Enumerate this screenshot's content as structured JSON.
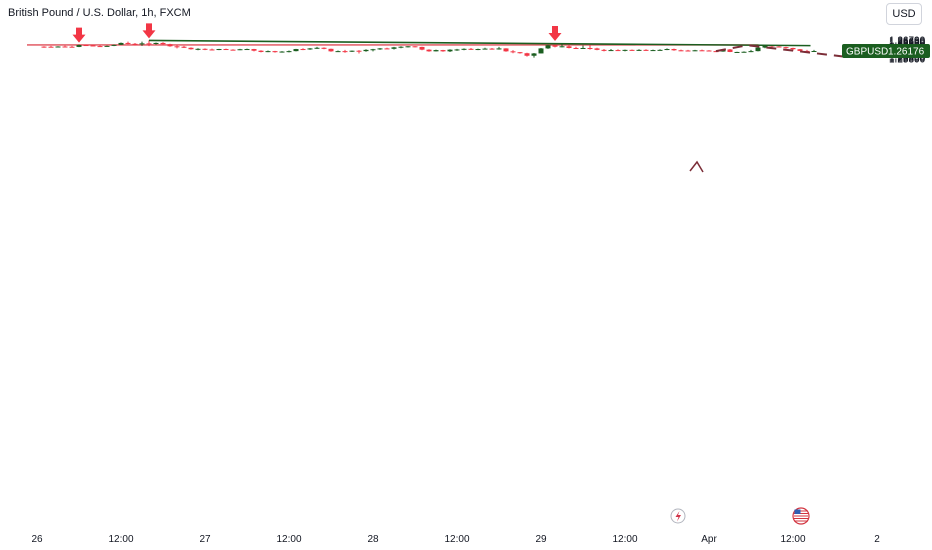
{
  "header": {
    "title": "British Pound / U.S. Dollar, 1h, FXCM",
    "currency_button": "USD"
  },
  "price_tag": {
    "symbol": "GBPUSD",
    "price": "1.26176"
  },
  "colors": {
    "up": "#1b5e20",
    "down": "#f23645",
    "trendline": "#1b5e20",
    "zone_fill": "#f8c7cc",
    "zone_stroke": "#e0525c",
    "arrow": "#f23645",
    "projection": "#7b2d37",
    "price_tag_bg": "#1b5e20"
  },
  "chart_data": {
    "type": "candlestick",
    "y_axis": {
      "range": [
        1.2579,
        1.2674
      ],
      "ticks": [
        "1.26700",
        "1.26650",
        "1.26600",
        "1.26550",
        "1.26500",
        "1.26450",
        "1.26400",
        "1.26350",
        "1.26300",
        "1.26250",
        "1.26200",
        "1.26150",
        "1.26100",
        "1.26050",
        "1.26000",
        "1.25950",
        "1.25900",
        "1.25850",
        "1.25800"
      ]
    },
    "x_axis": {
      "ticks": [
        {
          "label": "26",
          "i": -1
        },
        {
          "label": "12:00",
          "i": 11
        },
        {
          "label": "27",
          "i": 23
        },
        {
          "label": "12:00",
          "i": 35
        },
        {
          "label": "28",
          "i": 47
        },
        {
          "label": "12:00",
          "i": 59
        },
        {
          "label": "29",
          "i": 71
        },
        {
          "label": "12:00",
          "i": 83
        },
        {
          "label": "Apr",
          "i": 95
        },
        {
          "label": "12:00",
          "i": 107
        },
        {
          "label": "2",
          "i": 119
        }
      ]
    },
    "ohlc": [
      [
        1.26385,
        1.264,
        1.2633,
        1.2638
      ],
      [
        1.2638,
        1.2642,
        1.2634,
        1.2637
      ],
      [
        1.2637,
        1.264,
        1.2635,
        1.2639
      ],
      [
        1.2639,
        1.2643,
        1.2637,
        1.2638
      ],
      [
        1.2638,
        1.2642,
        1.2634,
        1.2637
      ],
      [
        1.2637,
        1.2648,
        1.2636,
        1.2646
      ],
      [
        1.2646,
        1.2648,
        1.2643,
        1.2644
      ],
      [
        1.2644,
        1.2646,
        1.264,
        1.2641
      ],
      [
        1.2641,
        1.2644,
        1.2638,
        1.2639
      ],
      [
        1.2639,
        1.2643,
        1.2638,
        1.2642
      ],
      [
        1.2642,
        1.2648,
        1.2641,
        1.2647
      ],
      [
        1.2647,
        1.2658,
        1.2646,
        1.2656
      ],
      [
        1.2656,
        1.2662,
        1.265,
        1.2652
      ],
      [
        1.2652,
        1.2656,
        1.2644,
        1.265
      ],
      [
        1.265,
        1.2662,
        1.2642,
        1.2654
      ],
      [
        1.2654,
        1.2668,
        1.2641,
        1.2651
      ],
      [
        1.2651,
        1.2658,
        1.2648,
        1.2656
      ],
      [
        1.2656,
        1.2659,
        1.2648,
        1.265
      ],
      [
        1.265,
        1.2652,
        1.2638,
        1.264
      ],
      [
        1.264,
        1.2646,
        1.263,
        1.2638
      ],
      [
        1.2638,
        1.2642,
        1.2632,
        1.2633
      ],
      [
        1.2633,
        1.2635,
        1.2624,
        1.2626
      ],
      [
        1.2626,
        1.2631,
        1.2621,
        1.2628
      ],
      [
        1.2628,
        1.263,
        1.2622,
        1.2625
      ],
      [
        1.2625,
        1.2629,
        1.2621,
        1.2624
      ],
      [
        1.2624,
        1.2628,
        1.2622,
        1.2627
      ],
      [
        1.2627,
        1.2629,
        1.2623,
        1.2624
      ],
      [
        1.2624,
        1.2626,
        1.2622,
        1.2623
      ],
      [
        1.2623,
        1.2628,
        1.2622,
        1.2626
      ],
      [
        1.2626,
        1.2629,
        1.2624,
        1.2627
      ],
      [
        1.2627,
        1.2628,
        1.2616,
        1.2619
      ],
      [
        1.2619,
        1.2621,
        1.2611,
        1.2613
      ],
      [
        1.2613,
        1.262,
        1.2612,
        1.2617
      ],
      [
        1.2617,
        1.2618,
        1.261,
        1.2612
      ],
      [
        1.2612,
        1.2617,
        1.261,
        1.2615
      ],
      [
        1.2615,
        1.262,
        1.2611,
        1.2617
      ],
      [
        1.2617,
        1.2628,
        1.2616,
        1.2627
      ],
      [
        1.2627,
        1.2631,
        1.2622,
        1.2625
      ],
      [
        1.2625,
        1.2632,
        1.2623,
        1.263
      ],
      [
        1.263,
        1.2637,
        1.2628,
        1.2633
      ],
      [
        1.2633,
        1.2635,
        1.2626,
        1.2628
      ],
      [
        1.2628,
        1.2629,
        1.2614,
        1.2616
      ],
      [
        1.2616,
        1.262,
        1.2613,
        1.2617
      ],
      [
        1.2617,
        1.2623,
        1.2609,
        1.2615
      ],
      [
        1.2615,
        1.262,
        1.2613,
        1.2619
      ],
      [
        1.2619,
        1.2622,
        1.2606,
        1.2617
      ],
      [
        1.2617,
        1.2626,
        1.2614,
        1.2623
      ],
      [
        1.2623,
        1.2628,
        1.2616,
        1.2626
      ],
      [
        1.2626,
        1.2632,
        1.2623,
        1.263
      ],
      [
        1.263,
        1.2633,
        1.2627,
        1.2628
      ],
      [
        1.2628,
        1.2637,
        1.2625,
        1.2635
      ],
      [
        1.2635,
        1.264,
        1.2631,
        1.2638
      ],
      [
        1.2638,
        1.2641,
        1.2634,
        1.264
      ],
      [
        1.264,
        1.2641,
        1.2635,
        1.2637
      ],
      [
        1.2637,
        1.2638,
        1.2621,
        1.2624
      ],
      [
        1.2624,
        1.2626,
        1.2614,
        1.2616
      ],
      [
        1.2616,
        1.2624,
        1.2615,
        1.2622
      ],
      [
        1.2622,
        1.2623,
        1.2614,
        1.2616
      ],
      [
        1.2616,
        1.2626,
        1.2613,
        1.2624
      ],
      [
        1.2624,
        1.2628,
        1.2618,
        1.2625
      ],
      [
        1.2625,
        1.263,
        1.2621,
        1.2628
      ],
      [
        1.2628,
        1.2632,
        1.2623,
        1.2625
      ],
      [
        1.2625,
        1.2629,
        1.2622,
        1.2627
      ],
      [
        1.2627,
        1.2633,
        1.2625,
        1.2629
      ],
      [
        1.2629,
        1.2632,
        1.2624,
        1.2625
      ],
      [
        1.2625,
        1.2637,
        1.2624,
        1.263
      ],
      [
        1.263,
        1.2631,
        1.2614,
        1.2616
      ],
      [
        1.2616,
        1.2622,
        1.2607,
        1.2612
      ],
      [
        1.2612,
        1.2613,
        1.2605,
        1.2607
      ],
      [
        1.2607,
        1.2609,
        1.2591,
        1.2595
      ],
      [
        1.2595,
        1.2608,
        1.2586,
        1.2606
      ],
      [
        1.2606,
        1.2632,
        1.2606,
        1.263
      ],
      [
        1.263,
        1.2647,
        1.2628,
        1.2645
      ],
      [
        1.2645,
        1.2647,
        1.2635,
        1.2638
      ],
      [
        1.2638,
        1.2656,
        1.2635,
        1.264
      ],
      [
        1.264,
        1.2646,
        1.263,
        1.2632
      ],
      [
        1.2632,
        1.2638,
        1.2627,
        1.263
      ],
      [
        1.263,
        1.2644,
        1.2629,
        1.2632
      ],
      [
        1.2632,
        1.2645,
        1.2624,
        1.263
      ],
      [
        1.263,
        1.2633,
        1.2621,
        1.2623
      ],
      [
        1.2623,
        1.2627,
        1.2616,
        1.2621
      ],
      [
        1.2621,
        1.2627,
        1.262,
        1.2622
      ],
      [
        1.2622,
        1.2626,
        1.2618,
        1.2621
      ],
      [
        1.2621,
        1.2624,
        1.2616,
        1.2623
      ],
      [
        1.2623,
        1.2625,
        1.2619,
        1.262
      ],
      [
        1.262,
        1.2626,
        1.2618,
        1.2623
      ],
      [
        1.2623,
        1.2626,
        1.2619,
        1.2621
      ],
      [
        1.2621,
        1.2624,
        1.2618,
        1.2622
      ],
      [
        1.2622,
        1.2626,
        1.262,
        1.2623
      ],
      [
        1.2623,
        1.263,
        1.2622,
        1.2627
      ],
      [
        1.2627,
        1.2629,
        1.2619,
        1.2621
      ],
      [
        1.2621,
        1.2624,
        1.2617,
        1.262
      ],
      [
        1.262,
        1.2623,
        1.2617,
        1.2619
      ],
      [
        1.2619,
        1.2623,
        1.2617,
        1.2621
      ],
      [
        1.2621,
        1.2624,
        1.2619,
        1.262
      ],
      [
        1.262,
        1.2622,
        1.2615,
        1.2617
      ],
      [
        1.2617,
        1.2619,
        1.2613,
        1.2615
      ],
      [
        1.2615,
        1.2627,
        1.2614,
        1.2625
      ],
      [
        1.2625,
        1.2627,
        1.2612,
        1.2613
      ],
      [
        1.2613,
        1.2614,
        1.2612,
        1.2613
      ],
      [
        1.2613,
        1.2616,
        1.261,
        1.2614
      ],
      [
        1.2614,
        1.2623,
        1.2612,
        1.2617
      ],
      [
        1.2617,
        1.2636,
        1.2616,
        1.2634
      ],
      [
        1.2634,
        1.2646,
        1.2631,
        1.2645
      ],
      [
        1.2645,
        1.2646,
        1.2633,
        1.2639
      ],
      [
        1.2639,
        1.2641,
        1.2634,
        1.2636
      ],
      [
        1.2636,
        1.2638,
        1.2629,
        1.2632
      ],
      [
        1.2632,
        1.2633,
        1.262,
        1.2626
      ],
      [
        1.2626,
        1.2627,
        1.2617,
        1.2618
      ],
      [
        1.2618,
        1.2623,
        1.2614,
        1.2616
      ],
      [
        1.2616,
        1.2623,
        1.2615,
        1.26176
      ]
    ],
    "zone": {
      "i_start": -0.5,
      "i_end": 102,
      "low": 1.26455,
      "high": 1.26475
    },
    "trendline": {
      "from": {
        "i": 15,
        "price": 1.26678
      },
      "to": {
        "i": 109.5,
        "price": 1.26432
      }
    },
    "markers": [
      {
        "i": 5,
        "price": 1.2648
      },
      {
        "i": 15,
        "price": 1.2668
      },
      {
        "i": 73,
        "price": 1.2656
      }
    ],
    "projection": [
      {
        "i": 96,
        "price": 1.2617
      },
      {
        "i": 100.5,
        "price": 1.2645
      },
      {
        "i": 114,
        "price": 1.2592
      },
      {
        "i": 115.5,
        "price": 1.2595
      }
    ]
  }
}
